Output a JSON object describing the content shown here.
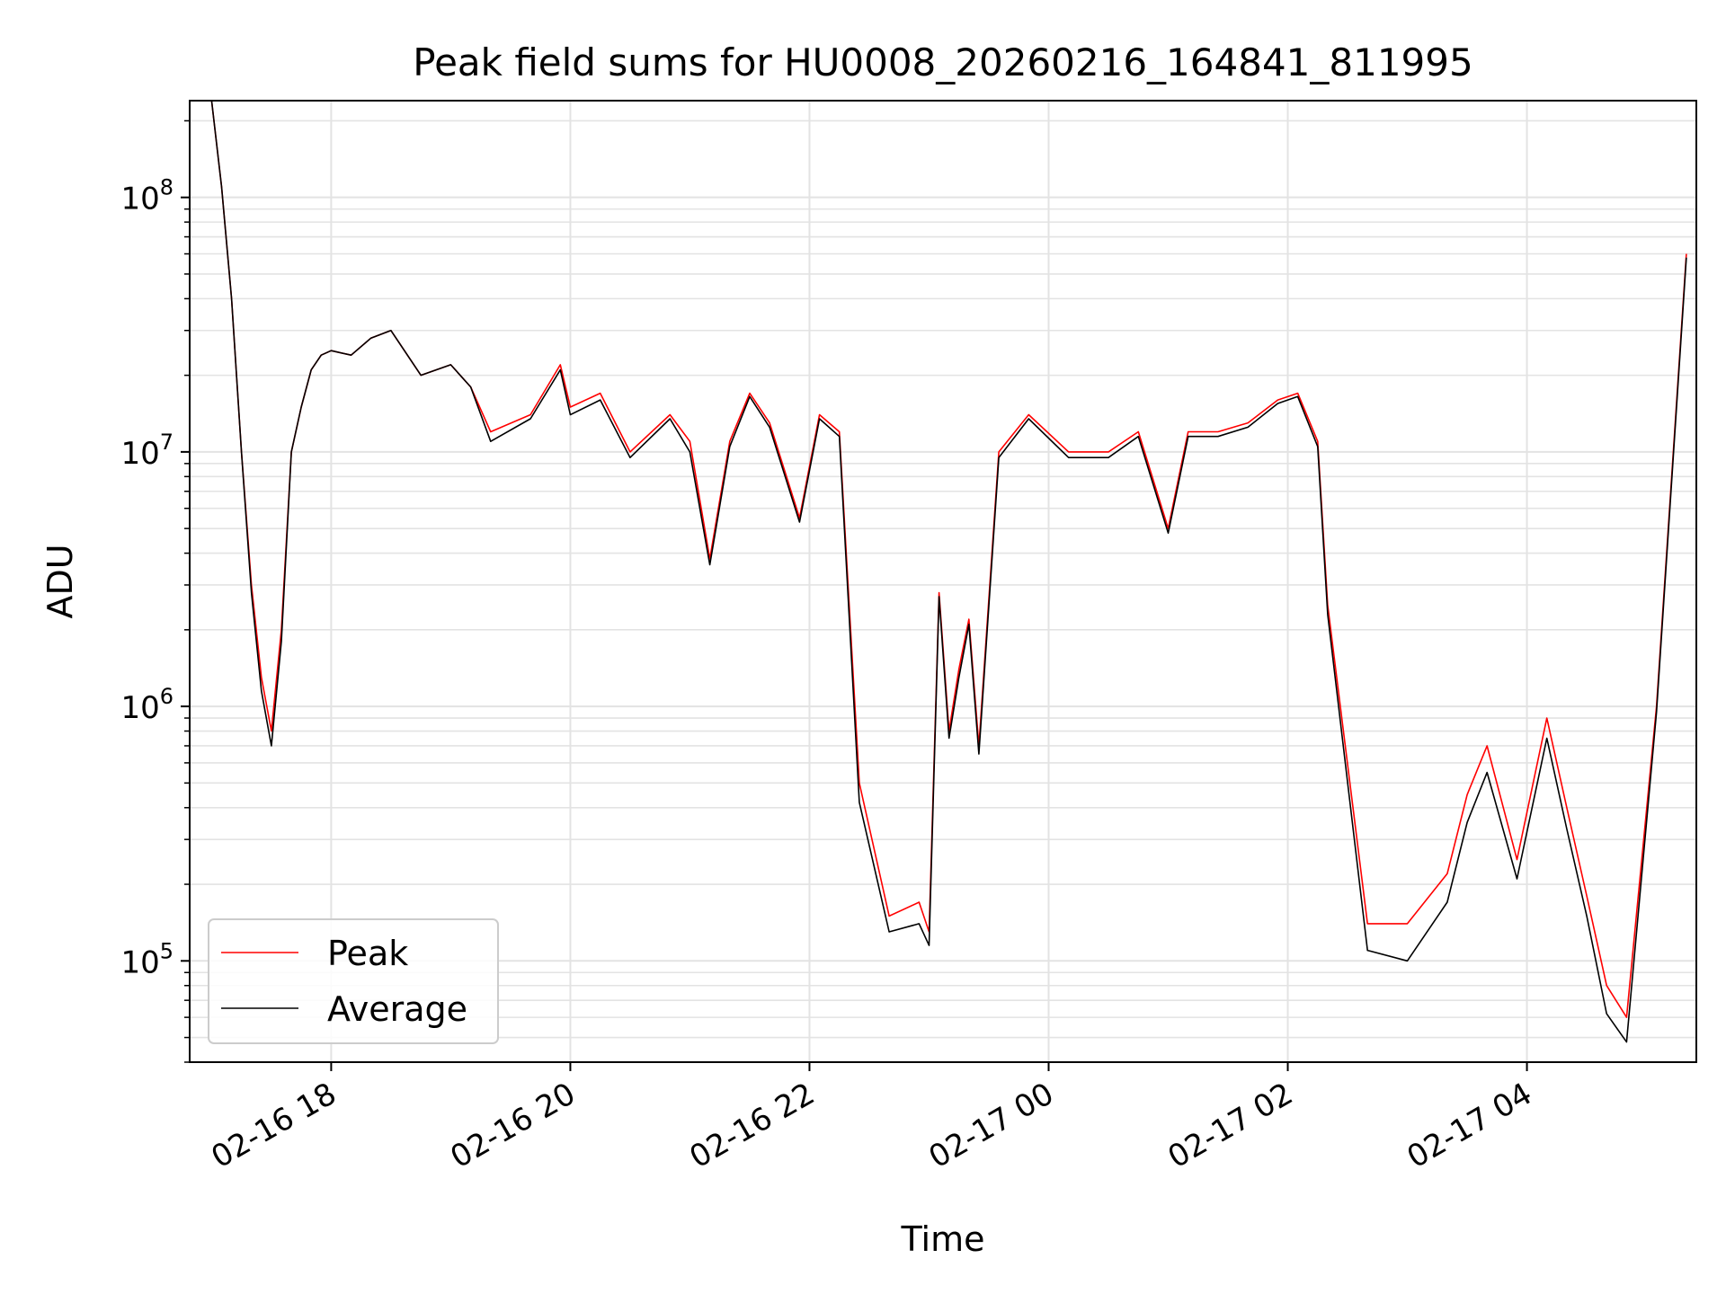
{
  "chart_data": {
    "type": "line",
    "title": "Peak field sums for HU0008_20260216_164841_811995",
    "xlabel": "Time",
    "ylabel": "ADU",
    "yscale": "log",
    "ylim": [
      40000,
      240000000
    ],
    "xlim": [
      "2026-02-16T16:49",
      "2026-02-17T05:25"
    ],
    "x_ticks": [
      {
        "value": "2026-02-16T18:00",
        "label": "02-16 18"
      },
      {
        "value": "2026-02-16T20:00",
        "label": "02-16 20"
      },
      {
        "value": "2026-02-16T22:00",
        "label": "02-16 22"
      },
      {
        "value": "2026-02-17T00:00",
        "label": "02-17 00"
      },
      {
        "value": "2026-02-17T02:00",
        "label": "02-17 02"
      },
      {
        "value": "2026-02-17T04:00",
        "label": "02-17 04"
      }
    ],
    "y_ticks": [
      {
        "value": 100000,
        "base": "10",
        "exp": "5"
      },
      {
        "value": 1000000,
        "base": "10",
        "exp": "6"
      },
      {
        "value": 10000000,
        "base": "10",
        "exp": "7"
      },
      {
        "value": 100000000,
        "base": "10",
        "exp": "8"
      }
    ],
    "grid": true,
    "legend_position": "lower-left",
    "x": [
      "2026-02-16T17:00",
      "2026-02-16T17:05",
      "2026-02-16T17:10",
      "2026-02-16T17:15",
      "2026-02-16T17:20",
      "2026-02-16T17:25",
      "2026-02-16T17:30",
      "2026-02-16T17:35",
      "2026-02-16T17:40",
      "2026-02-16T17:45",
      "2026-02-16T17:50",
      "2026-02-16T17:55",
      "2026-02-16T18:00",
      "2026-02-16T18:10",
      "2026-02-16T18:20",
      "2026-02-16T18:30",
      "2026-02-16T18:45",
      "2026-02-16T19:00",
      "2026-02-16T19:10",
      "2026-02-16T19:20",
      "2026-02-16T19:40",
      "2026-02-16T19:55",
      "2026-02-16T20:00",
      "2026-02-16T20:15",
      "2026-02-16T20:30",
      "2026-02-16T20:50",
      "2026-02-16T21:00",
      "2026-02-16T21:10",
      "2026-02-16T21:20",
      "2026-02-16T21:30",
      "2026-02-16T21:40",
      "2026-02-16T21:55",
      "2026-02-16T22:05",
      "2026-02-16T22:15",
      "2026-02-16T22:25",
      "2026-02-16T22:40",
      "2026-02-16T22:55",
      "2026-02-16T23:00",
      "2026-02-16T23:05",
      "2026-02-16T23:10",
      "2026-02-16T23:15",
      "2026-02-16T23:20",
      "2026-02-16T23:25",
      "2026-02-16T23:35",
      "2026-02-16T23:50",
      "2026-02-17T00:10",
      "2026-02-17T00:30",
      "2026-02-17T00:45",
      "2026-02-17T01:00",
      "2026-02-17T01:10",
      "2026-02-17T01:25",
      "2026-02-17T01:40",
      "2026-02-17T01:55",
      "2026-02-17T02:05",
      "2026-02-17T02:15",
      "2026-02-17T02:20",
      "2026-02-17T02:40",
      "2026-02-17T03:00",
      "2026-02-17T03:20",
      "2026-02-17T03:30",
      "2026-02-17T03:40",
      "2026-02-17T03:55",
      "2026-02-17T04:10",
      "2026-02-17T04:20",
      "2026-02-17T04:30",
      "2026-02-17T04:40",
      "2026-02-17T04:50",
      "2026-02-17T05:05",
      "2026-02-17T05:20"
    ],
    "series": [
      {
        "name": "Peak",
        "color": "#ff0000",
        "values": [
          240000000,
          110000000,
          40000000,
          10000000,
          3000000,
          1300000,
          800000,
          2000000,
          10000000,
          15000000,
          21000000,
          24000000,
          25000000,
          24000000,
          28000000,
          30000000,
          20000000,
          22000000,
          18000000,
          12000000,
          14000000,
          22000000,
          15000000,
          17000000,
          10000000,
          14000000,
          11000000,
          3800000,
          11000000,
          17000000,
          13000000,
          5500000,
          14000000,
          12000000,
          500000,
          150000,
          170000,
          130000,
          2800000,
          800000,
          1400000,
          2200000,
          700000,
          10000000,
          14000000,
          10000000,
          10000000,
          12000000,
          5000000,
          12000000,
          12000000,
          13000000,
          16000000,
          17000000,
          11000000,
          2500000,
          140000,
          140000,
          220000,
          450000,
          700000,
          250000,
          900000,
          400000,
          180000,
          80000,
          60000,
          1000000,
          60000000
        ]
      },
      {
        "name": "Average",
        "color": "#000000",
        "values": [
          240000000,
          110000000,
          40000000,
          10000000,
          2800000,
          1150000,
          700000,
          1800000,
          10000000,
          15000000,
          21000000,
          24000000,
          25000000,
          24000000,
          28000000,
          30000000,
          20000000,
          22000000,
          18000000,
          11000000,
          13500000,
          21000000,
          14000000,
          16000000,
          9500000,
          13500000,
          10000000,
          3600000,
          10500000,
          16500000,
          12500000,
          5300000,
          13500000,
          11500000,
          420000,
          130000,
          140000,
          115000,
          2700000,
          750000,
          1300000,
          2100000,
          650000,
          9500000,
          13500000,
          9500000,
          9500000,
          11500000,
          4800000,
          11500000,
          11500000,
          12500000,
          15500000,
          16500000,
          10500000,
          2300000,
          110000,
          100000,
          170000,
          350000,
          550000,
          210000,
          750000,
          330000,
          150000,
          62000,
          48000,
          950000,
          58000000
        ]
      }
    ]
  }
}
